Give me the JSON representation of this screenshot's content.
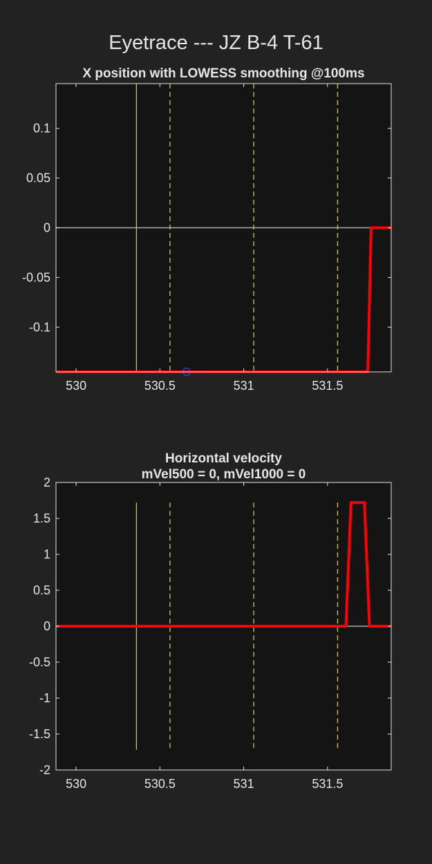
{
  "figure": {
    "title": "Eyetrace --- JZ B-4 T-61"
  },
  "colors": {
    "background": "#222222",
    "axes_bg": "#141414",
    "axes_border": "#e6e6e6",
    "trace": "#ff0000",
    "marker": "#d9c63a",
    "zero_line": "#aaaaaa",
    "circle": "#2a4fd0"
  },
  "chart_data": [
    {
      "type": "line",
      "title": "X position with LOWESS smoothing @100ms",
      "xlim": [
        529.88,
        531.88
      ],
      "ylim": [
        -0.145,
        0.145
      ],
      "xticks": [
        530,
        530.5,
        531,
        531.5
      ],
      "xtick_labels": [
        "530",
        "530.5",
        "531",
        "531.5"
      ],
      "yticks": [
        0.1,
        0.05,
        0,
        -0.05,
        -0.1
      ],
      "ytick_labels": [
        "0.1",
        "0.05",
        "0",
        "-0.05",
        "-0.1"
      ],
      "markers_solid": [
        530.36
      ],
      "markers_dashed": [
        530.56,
        531.06,
        531.56
      ],
      "marker_range": null,
      "zero_line": true,
      "circle_point": {
        "x": 530.66,
        "y": -0.145
      },
      "series": [
        {
          "x": [
            529.88,
            531.74,
            531.76,
            531.88
          ],
          "y": [
            -0.145,
            -0.145,
            0.0,
            0.0
          ]
        }
      ]
    },
    {
      "type": "line",
      "title": "Horizontal velocity",
      "subtitle": "mVel500 = 0, mVel1000 = 0",
      "xlim": [
        529.88,
        531.88
      ],
      "ylim": [
        -2,
        2
      ],
      "xticks": [
        530,
        530.5,
        531,
        531.5
      ],
      "xtick_labels": [
        "530",
        "530.5",
        "531",
        "531.5"
      ],
      "yticks": [
        2,
        1.5,
        1,
        0.5,
        0,
        -0.5,
        -1,
        -1.5,
        -2
      ],
      "ytick_labels": [
        "2",
        "1.5",
        "1",
        "0.5",
        "0",
        "-0.5",
        "-1",
        "-1.5",
        "-2"
      ],
      "markers_solid": [
        530.36
      ],
      "markers_dashed": [
        530.56,
        531.06,
        531.56
      ],
      "marker_range": [
        -1.72,
        1.72
      ],
      "zero_line": true,
      "circle_point": null,
      "series": [
        {
          "x": [
            529.88,
            531.61,
            531.64,
            531.72,
            531.75,
            531.88
          ],
          "y": [
            0,
            0,
            1.72,
            1.72,
            0,
            0
          ]
        }
      ]
    }
  ]
}
